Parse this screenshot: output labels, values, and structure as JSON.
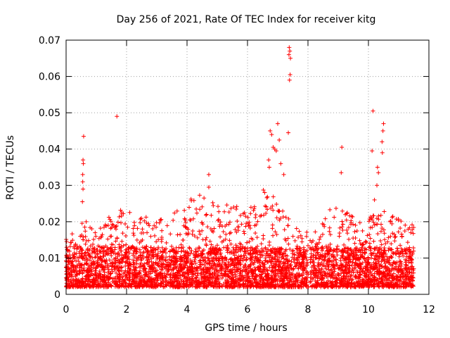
{
  "chart_data": {
    "type": "scatter",
    "title": "Day 256 of 2021, Rate Of TEC Index for receiver kitg",
    "xlabel": "GPS time / hours",
    "ylabel": "ROTI / TECUs",
    "xlim": [
      0,
      12
    ],
    "ylim": [
      0,
      0.07
    ],
    "xticks": [
      0,
      2,
      4,
      6,
      8,
      10,
      12
    ],
    "xtick_labels": [
      "0",
      "2",
      "4",
      "6",
      "8",
      "10",
      "12"
    ],
    "yticks": [
      0,
      0.01,
      0.02,
      0.03,
      0.04,
      0.05,
      0.06,
      0.07
    ],
    "ytick_labels": [
      "0",
      "0.01",
      "0.02",
      "0.03",
      "0.04",
      "0.05",
      "0.06",
      "0.07"
    ],
    "grid": true,
    "marker": "plus",
    "color": "#ff0000",
    "bulk_envelope": [
      [
        0.0,
        0.016
      ],
      [
        0.4,
        0.019
      ],
      [
        0.7,
        0.021
      ],
      [
        1.0,
        0.018
      ],
      [
        1.5,
        0.022
      ],
      [
        2.0,
        0.024
      ],
      [
        2.5,
        0.022
      ],
      [
        3.0,
        0.021
      ],
      [
        3.5,
        0.022
      ],
      [
        4.0,
        0.025
      ],
      [
        4.3,
        0.028
      ],
      [
        4.7,
        0.026
      ],
      [
        5.0,
        0.025
      ],
      [
        5.5,
        0.025
      ],
      [
        6.0,
        0.023
      ],
      [
        6.5,
        0.03
      ],
      [
        7.0,
        0.026
      ],
      [
        7.5,
        0.02
      ],
      [
        7.9,
        0.018
      ],
      [
        8.1,
        0.016
      ],
      [
        8.5,
        0.02
      ],
      [
        8.8,
        0.025
      ],
      [
        9.0,
        0.023
      ],
      [
        9.4,
        0.025
      ],
      [
        9.8,
        0.02
      ],
      [
        10.2,
        0.022
      ],
      [
        10.6,
        0.023
      ],
      [
        11.0,
        0.021
      ],
      [
        11.5,
        0.02
      ]
    ],
    "outliers": [
      [
        0.58,
        0.0435
      ],
      [
        0.56,
        0.037
      ],
      [
        0.57,
        0.036
      ],
      [
        0.55,
        0.033
      ],
      [
        0.55,
        0.031
      ],
      [
        0.56,
        0.029
      ],
      [
        0.54,
        0.0255
      ],
      [
        1.68,
        0.049
      ],
      [
        4.72,
        0.033
      ],
      [
        4.72,
        0.0295
      ],
      [
        6.75,
        0.045
      ],
      [
        6.8,
        0.044
      ],
      [
        6.85,
        0.0405
      ],
      [
        6.9,
        0.04
      ],
      [
        6.95,
        0.0395
      ],
      [
        7.0,
        0.047
      ],
      [
        7.05,
        0.0425
      ],
      [
        7.1,
        0.036
      ],
      [
        6.7,
        0.037
      ],
      [
        6.72,
        0.035
      ],
      [
        7.38,
        0.068
      ],
      [
        7.4,
        0.067
      ],
      [
        7.37,
        0.066
      ],
      [
        7.42,
        0.065
      ],
      [
        7.41,
        0.0605
      ],
      [
        7.39,
        0.059
      ],
      [
        7.35,
        0.0445
      ],
      [
        7.2,
        0.033
      ],
      [
        9.12,
        0.0405
      ],
      [
        9.1,
        0.0335
      ],
      [
        10.15,
        0.0505
      ],
      [
        10.12,
        0.0395
      ],
      [
        10.3,
        0.035
      ],
      [
        10.33,
        0.0335
      ],
      [
        10.28,
        0.03
      ],
      [
        10.5,
        0.047
      ],
      [
        10.48,
        0.045
      ],
      [
        10.45,
        0.042
      ],
      [
        10.46,
        0.039
      ],
      [
        10.2,
        0.026
      ],
      [
        11.4,
        0.017
      ]
    ]
  }
}
